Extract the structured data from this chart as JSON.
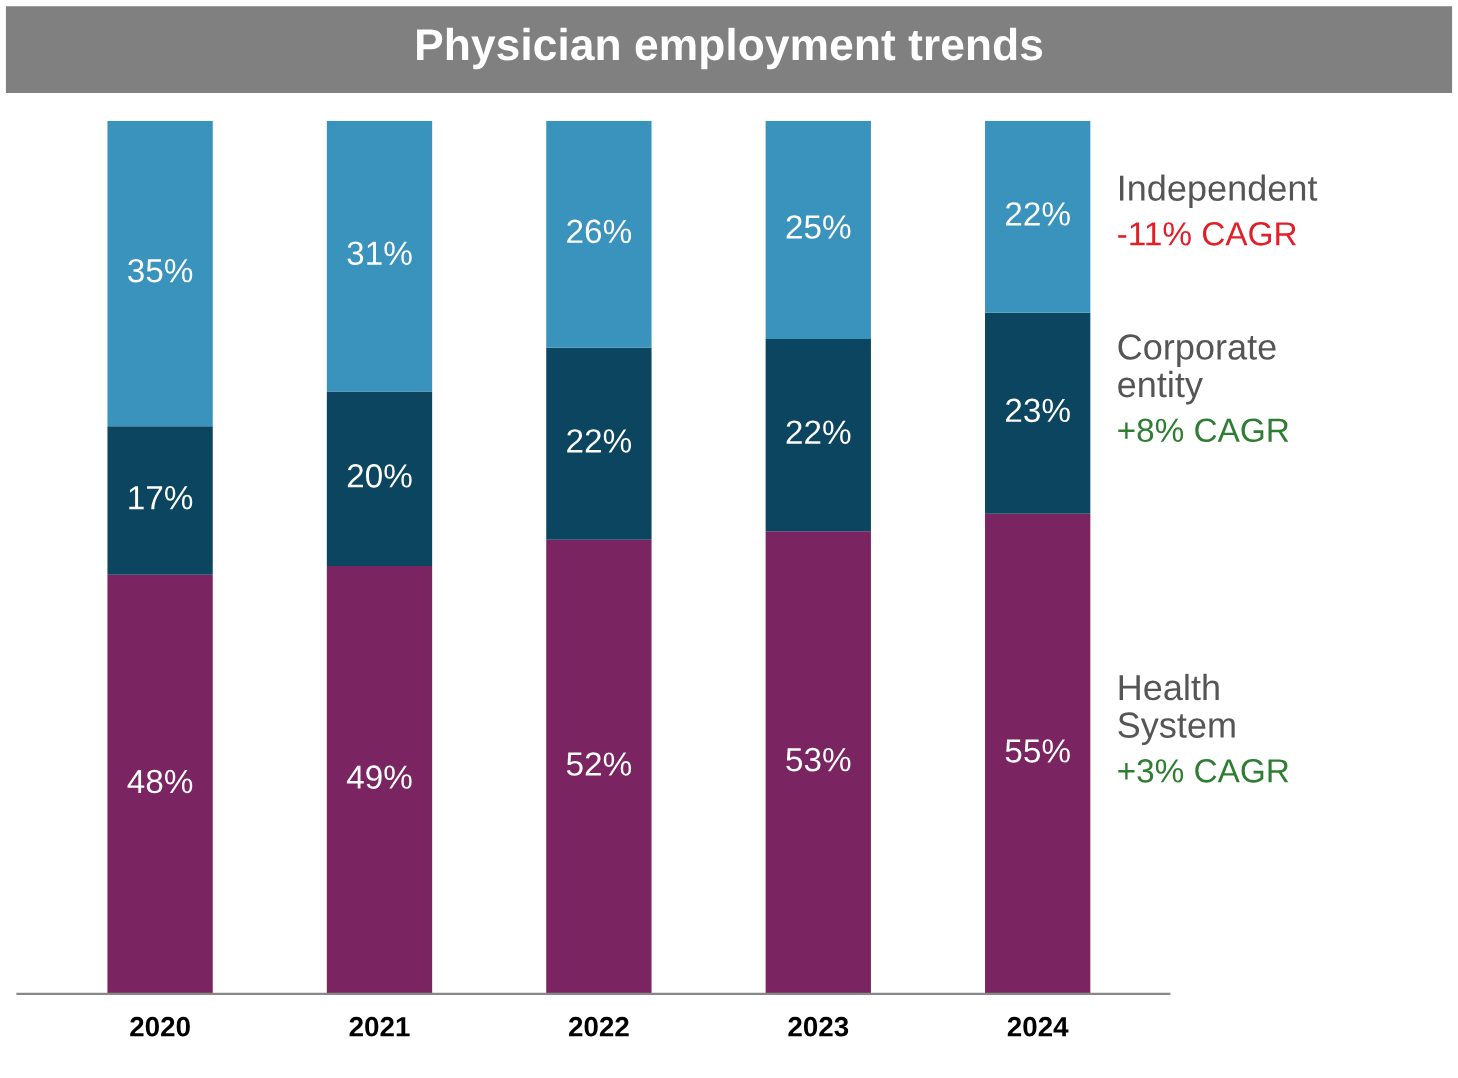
{
  "chart_data": {
    "type": "bar",
    "stacked": true,
    "title": "Physician employment trends",
    "categories": [
      "2020",
      "2021",
      "2022",
      "2023",
      "2024"
    ],
    "series": [
      {
        "name": "Health System",
        "color": "#7b2462",
        "values": [
          48,
          49,
          52,
          53,
          55
        ],
        "value_labels": [
          "48%",
          "49%",
          "52%",
          "53%",
          "55%"
        ]
      },
      {
        "name": "Corporate entity",
        "color": "#0b4560",
        "values": [
          17,
          20,
          22,
          22,
          23
        ],
        "value_labels": [
          "17%",
          "20%",
          "22%",
          "22%",
          "23%"
        ]
      },
      {
        "name": "Independent",
        "color": "#3a93bd",
        "values": [
          35,
          31,
          26,
          25,
          22
        ],
        "value_labels": [
          "35%",
          "31%",
          "26%",
          "25%",
          "22%"
        ]
      }
    ],
    "annotations": [
      "+3% CAGR",
      "+8% CAGR",
      "-11% CAGR"
    ],
    "grid": false,
    "legend": false
  }
}
